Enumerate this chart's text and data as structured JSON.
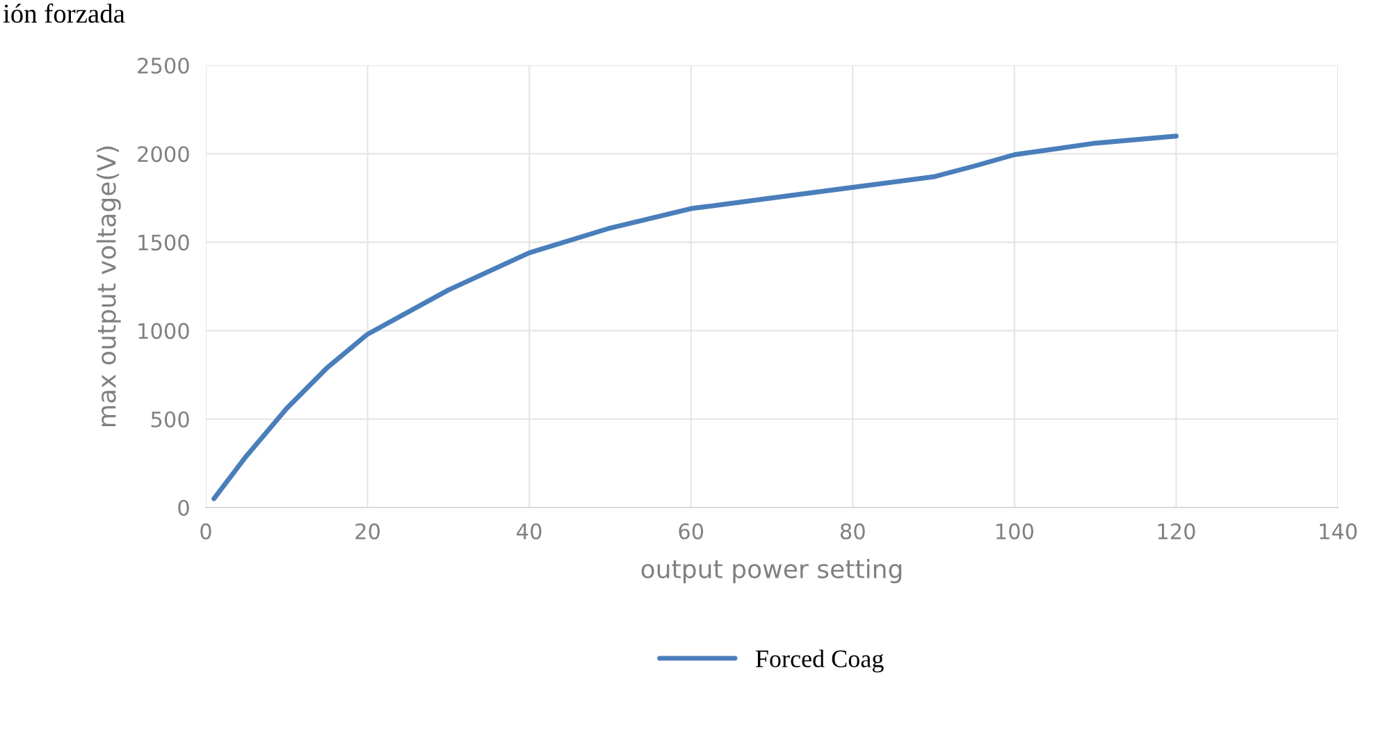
{
  "chart_data": {
    "type": "line",
    "xlabel": "output power setting",
    "ylabel": "max output voltage(V)",
    "annotations": [
      "ión forzada"
    ],
    "series": [
      {
        "name": "Forced Coag",
        "color": "#4a7ebb",
        "x": [
          1,
          5,
          10,
          15,
          20,
          30,
          40,
          50,
          60,
          70,
          80,
          90,
          95,
          100,
          110,
          120
        ],
        "values": [
          50,
          290,
          560,
          790,
          980,
          1230,
          1440,
          1580,
          1690,
          1750,
          1810,
          1870,
          1930,
          1995,
          2060,
          2100
        ]
      }
    ],
    "xlim": [
      0,
      140
    ],
    "xticks": [
      0,
      20,
      40,
      60,
      80,
      100,
      120,
      140
    ],
    "ylim": [
      0,
      2500
    ],
    "yticks": [
      0,
      500,
      1000,
      1500,
      2000,
      2500
    ],
    "grid": true,
    "legend": "bottom",
    "marker": "none",
    "line_style": "solid"
  }
}
